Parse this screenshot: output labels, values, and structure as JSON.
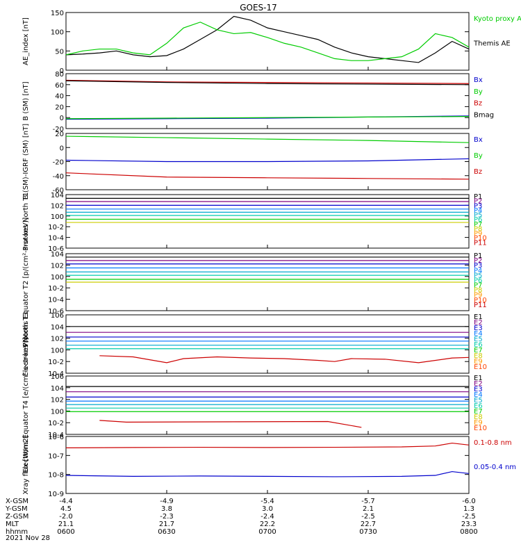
{
  "title": "GOES-17",
  "date_label": "2021 Nov 28",
  "footer": {
    "row_labels": [
      "X-GSM",
      "Y-GSM",
      "Z-GSM",
      "MLT",
      "hhmm"
    ],
    "columns": [
      [
        "-4.4",
        "4.5",
        "-2.0",
        "21.1",
        "0600"
      ],
      [
        "-4.9",
        "3.8",
        "-2.3",
        "21.7",
        "0630"
      ],
      [
        "-5.4",
        "3.0",
        "-2.4",
        "22.2",
        "0700"
      ],
      [
        "-5.7",
        "2.1",
        "-2.5",
        "22.7",
        "0730"
      ],
      [
        "-6.0",
        "1.3",
        "-2.5",
        "23.3",
        "0800"
      ]
    ]
  },
  "colors": {
    "black": "#000000",
    "blue": "#0000cc",
    "green": "#00cc00",
    "red": "#cc0000",
    "p_channels": [
      "#000000",
      "#800080",
      "#0000cc",
      "#0077ff",
      "#00aacc",
      "#00ccaa",
      "#00cc00",
      "#cccc00",
      "#ff9900",
      "#ff4400",
      "#cc0000"
    ]
  },
  "chart_data": [
    {
      "type": "line",
      "ylabel": "AE_index [nT]",
      "ylim": [
        0,
        150
      ],
      "yticks": [
        "0",
        "50",
        "100",
        "150"
      ],
      "legend": [
        "Kyoto proxy AE",
        "Themis AE"
      ],
      "x": [
        0,
        5,
        10,
        15,
        20,
        25,
        30,
        35,
        40,
        45,
        50,
        55,
        60,
        65,
        70,
        75,
        80,
        85,
        90,
        95,
        100,
        105,
        110,
        115,
        120
      ],
      "series": [
        {
          "name": "Themis AE",
          "color": "#000000",
          "values": [
            40,
            42,
            45,
            50,
            40,
            35,
            38,
            55,
            80,
            105,
            140,
            130,
            110,
            100,
            90,
            80,
            60,
            45,
            35,
            30,
            25,
            20,
            45,
            75,
            55
          ]
        },
        {
          "name": "Kyoto proxy AE",
          "color": "#00cc00",
          "values": [
            40,
            50,
            55,
            55,
            45,
            40,
            70,
            110,
            125,
            105,
            95,
            98,
            85,
            70,
            60,
            45,
            30,
            25,
            25,
            30,
            35,
            55,
            95,
            85,
            60
          ]
        }
      ]
    },
    {
      "type": "line",
      "ylabel": "B (SM) [nT]",
      "ylim": [
        -20,
        80
      ],
      "yticks": [
        "-20",
        "0",
        "20",
        "40",
        "60",
        "80"
      ],
      "legend": [
        "Bx",
        "By",
        "Bz",
        "Bmag"
      ],
      "x": [
        0,
        30,
        60,
        90,
        120
      ],
      "series": [
        {
          "name": "Bx",
          "color": "#0000cc",
          "values": [
            -3,
            -2,
            -1,
            1,
            3
          ]
        },
        {
          "name": "By",
          "color": "#00cc00",
          "values": [
            -2,
            -1,
            0,
            1,
            2
          ]
        },
        {
          "name": "Bz",
          "color": "#cc0000",
          "values": [
            68,
            65,
            64,
            63,
            62
          ]
        },
        {
          "name": "Bmag",
          "color": "#000000",
          "values": [
            67,
            64,
            62,
            61,
            60
          ]
        }
      ]
    },
    {
      "type": "line",
      "ylabel": "B (SM)-IGRF (SM) [nT]",
      "ylim": [
        -60,
        20
      ],
      "yticks": [
        "-60",
        "-40",
        "-20",
        "0",
        "20"
      ],
      "legend": [
        "Bx",
        "By",
        "Bz"
      ],
      "x": [
        0,
        30,
        60,
        90,
        120
      ],
      "series": [
        {
          "name": "Bx",
          "color": "#0000cc",
          "values": [
            -18,
            -20,
            -20,
            -19,
            -16
          ]
        },
        {
          "name": "By",
          "color": "#00cc00",
          "values": [
            16,
            14,
            12,
            10,
            7
          ]
        },
        {
          "name": "Bz",
          "color": "#cc0000",
          "values": [
            -36,
            -42,
            -43,
            -44,
            -45
          ]
        }
      ]
    },
    {
      "type": "line",
      "scale": "log",
      "ylabel": "Protons North T1",
      "ylim": [
        -6,
        4
      ],
      "yticks": [
        "10^-6",
        "10^-4",
        "10^-2",
        "10^0",
        "10^2",
        "10^4"
      ],
      "legend": [
        "P1",
        "P2",
        "P3",
        "P4",
        "P5",
        "P6",
        "P7",
        "P8",
        "P9",
        "P10",
        "P11"
      ],
      "levels": [
        3.3,
        2.7,
        2.0,
        1.3,
        0.7,
        0.1,
        -0.6,
        -1.2
      ]
    },
    {
      "type": "line",
      "scale": "log",
      "ylabel": "Protons Equator T2 [p/(cm²-s-sr-keV)]",
      "ylim": [
        -6,
        4
      ],
      "yticks": [
        "10^-6",
        "10^-4",
        "10^-2",
        "10^0",
        "10^2",
        "10^4"
      ],
      "legend": [
        "P1",
        "P2",
        "P3",
        "P4",
        "P5",
        "P6",
        "P7",
        "P8",
        "P9",
        "P10",
        "P11"
      ],
      "levels": [
        3.4,
        2.8,
        2.2,
        1.5,
        0.8,
        0.2,
        -0.5,
        -1.0
      ]
    },
    {
      "type": "line",
      "scale": "log",
      "ylabel": "Electrons North T3",
      "ylim": [
        -4,
        6
      ],
      "yticks": [
        "10^-4",
        "10^-2",
        "10^0",
        "10^2",
        "10^4",
        "10^6"
      ],
      "legend": [
        "E1",
        "E2",
        "E3",
        "E4",
        "E5",
        "E6",
        "E7",
        "E8",
        "E9",
        "E10"
      ],
      "levels": [
        4.0,
        3.0,
        2.2,
        1.5,
        0.8,
        0.2
      ],
      "red_series": {
        "color": "#cc0000",
        "x": [
          10,
          20,
          30,
          35,
          45,
          55,
          65,
          75,
          80,
          85,
          95,
          105,
          115,
          120
        ],
        "values": [
          -1.0,
          -1.2,
          -2.2,
          -1.5,
          -1.2,
          -1.4,
          -1.5,
          -1.8,
          -2.0,
          -1.5,
          -1.6,
          -2.2,
          -1.4,
          -1.3
        ]
      }
    },
    {
      "type": "line",
      "scale": "log",
      "ylabel": "Electrons Equator T4 [e/(cm²-s-sr-keV)]",
      "ylim": [
        -4,
        6
      ],
      "yticks": [
        "10^-4",
        "10^-2",
        "10^0",
        "10^2",
        "10^4",
        "10^6"
      ],
      "legend": [
        "E1",
        "E2",
        "E3",
        "E4",
        "E5",
        "E6",
        "E7",
        "E8",
        "E9",
        "E10"
      ],
      "levels": [
        4.2,
        3.3,
        2.4,
        1.7,
        1.1,
        0.5,
        -0.1
      ],
      "red_series": {
        "color": "#cc0000",
        "x": [
          10,
          18,
          78,
          88
        ],
        "values": [
          -1.6,
          -1.9,
          -1.8,
          -2.8
        ]
      }
    },
    {
      "type": "line",
      "scale": "log",
      "ylabel": "Xray flux [W/m2]",
      "ylim": [
        -9,
        -6
      ],
      "yticks": [
        "10^-9",
        "10^-8",
        "10^-7",
        "10^-6"
      ],
      "legend": [
        "0.1-0.8 nm",
        "0.05-0.4 nm"
      ],
      "x": [
        0,
        20,
        40,
        60,
        80,
        100,
        110,
        115,
        120
      ],
      "series": [
        {
          "name": "0.1-0.8 nm",
          "color": "#cc0000",
          "values": [
            -6.6,
            -6.58,
            -6.57,
            -6.58,
            -6.57,
            -6.55,
            -6.5,
            -6.35,
            -6.45
          ]
        },
        {
          "name": "0.05-0.4 nm",
          "color": "#0000cc",
          "values": [
            -8.05,
            -8.1,
            -8.08,
            -8.1,
            -8.12,
            -8.1,
            -8.05,
            -7.85,
            -7.95
          ]
        }
      ]
    }
  ]
}
